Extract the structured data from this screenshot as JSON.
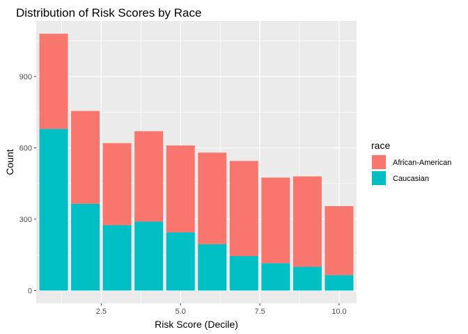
{
  "chart_data": {
    "type": "bar",
    "stacked": true,
    "title": "Distribution of Risk Scores by Race",
    "xlabel": "Risk Score (Decile)",
    "ylabel": "Count",
    "x": [
      1,
      2,
      3,
      4,
      5,
      6,
      7,
      8,
      9,
      10
    ],
    "xlim": [
      0.45,
      10.55
    ],
    "ylim": [
      -54,
      1134
    ],
    "xticks": [
      2.5,
      5.0,
      7.5,
      10.0
    ],
    "xtick_labels": [
      "2.5",
      "5.0",
      "7.5",
      "10.0"
    ],
    "yticks": [
      0,
      300,
      600,
      900
    ],
    "ytick_labels": [
      "0",
      "300",
      "600",
      "900"
    ],
    "grid": true,
    "panel_background": "#ebebeb",
    "legend": {
      "title": "race",
      "placement": "right",
      "entries": [
        {
          "label": "African-American",
          "color": "#f8766d"
        },
        {
          "label": "Caucasian",
          "color": "#00bfc4"
        }
      ]
    },
    "series": [
      {
        "name": "Caucasian",
        "color": "#00bfc4",
        "values": [
          680,
          365,
          275,
          290,
          245,
          195,
          145,
          115,
          100,
          65
        ]
      },
      {
        "name": "African-American",
        "color": "#f8766d",
        "values": [
          400,
          390,
          345,
          380,
          365,
          385,
          400,
          360,
          380,
          290
        ]
      }
    ]
  }
}
